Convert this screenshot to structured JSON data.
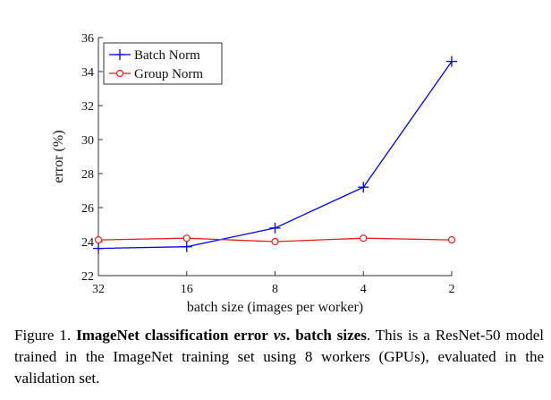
{
  "chart_data": {
    "type": "line",
    "categories": [
      "32",
      "16",
      "8",
      "4",
      "2"
    ],
    "series": [
      {
        "name": "Batch Norm",
        "values": [
          23.6,
          23.7,
          24.8,
          27.2,
          34.6
        ],
        "color": "#0000ee",
        "marker": "plus"
      },
      {
        "name": "Group Norm",
        "values": [
          24.1,
          24.2,
          24.0,
          24.2,
          24.1
        ],
        "color": "#e52020",
        "marker": "circle"
      }
    ],
    "xlabel": "batch size (images per worker)",
    "ylabel": "error (%)",
    "ylim": [
      22,
      36
    ],
    "yticks": [
      22,
      24,
      26,
      28,
      30,
      32,
      34,
      36
    ],
    "legend_position": "top-left",
    "grid": false
  },
  "caption": {
    "prefix": "Figure 1.",
    "bold_part_1": "ImageNet classification error",
    "italic_part": "vs",
    "bold_part_2": ". batch sizes",
    "rest": ". This is a ResNet-50 model trained in the ImageNet training set using 8 workers (GPUs), evaluated in the validation set."
  }
}
